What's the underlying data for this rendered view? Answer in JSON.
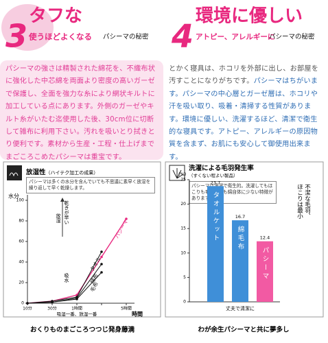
{
  "left_section": {
    "number": "3",
    "title": "タフな",
    "subtitle": "使うほどよくなる",
    "tag": "パシーマの秘密",
    "paragraph": "パシーマの強さは精製された綿花を、不織布状に強化した中芯綿を両面より密度の高いガーゼで保護し、全面を強力な糸により網状キルトに加工している点にあります。外側のガーゼやキルト糸がいたむ迄使用した後、30cm位に切断して雑布に利用下さい。汚れを吸いとり拭きとり便利です。素材から生産・工程・仕上げまでまごころこめたパシーマは重宝です。"
  },
  "right_section": {
    "number": "4",
    "title": "環境に優しい",
    "subtitle": "アトピー、アレルギーに",
    "tag": "パシーマの秘密",
    "paragraph_intro": "とかく寝具は、ホコリを外部に出し、お部屋を汚すことになりがちです。",
    "paragraph": "パシーマはちがいます。パシーマの中心層とガーゼ層は、ホコリや汗を吸い取り、吸着・清掃する性質があります。環境に優しい、洗濯するほど、清潔で衛生的な寝具です。アトピー、アレルギーの原因物質を含まず、お肌にも安心して御使用出来ます。"
  },
  "chart_data": [
    {
      "type": "line",
      "title": "放湿性",
      "subtitle": "（ハイテク加工の成果）",
      "description": "パシーマは多くの水分を含んでいても不思議に素早く放湿を繰り返して早く乾燥します。",
      "y_label": "水分",
      "x_label": "時間",
      "x_note": "吸湿一番、放湿一番",
      "annotations": [
        "乾きが早い",
        "放湿",
        "吸水"
      ],
      "categories": [
        "10分",
        "30分",
        "1時間",
        null,
        "5時間"
      ],
      "series": [
        {
          "name": "パシーマ",
          "color": "#e8287f",
          "values": [
            0,
            2,
            8,
            45,
            82
          ]
        },
        {
          "name": "タオル",
          "color": "#111111",
          "values": [
            0,
            2,
            6,
            50,
            null
          ]
        },
        {
          "name": "綿布",
          "color": "#111111",
          "values": [
            0,
            1,
            5,
            38,
            null
          ]
        },
        {
          "name": "毛布",
          "color": "#111111",
          "values": [
            0,
            1,
            4,
            30,
            null
          ]
        }
      ],
      "ylim": [
        0,
        100
      ],
      "yticks": [
        0,
        20,
        40,
        60,
        80,
        100
      ],
      "caption": "おくりものまごころつつじ発身藤満"
    },
    {
      "type": "bar",
      "title": "洗濯による毛羽発生率",
      "subtitle": "（すくない程よい製品）",
      "description": "パシーマは洗濯で衛生的。洗濯してもほこりも毛羽立ちも綿自体に少ない特徴があります。",
      "y_label": "(%)",
      "x_label": "丈夫で清潔に",
      "side_note": [
        "不潔な毛羽、",
        "ほこりは最小"
      ],
      "categories": [
        "タオルケット",
        "綿毛布",
        "パシーマ"
      ],
      "values": [
        23.7,
        16.7,
        12.4
      ],
      "colors": [
        "#3f8fd8",
        "#3f8fd8",
        "#f25aa3"
      ],
      "ylim": [
        0,
        25
      ],
      "yticks": [
        0,
        5,
        10,
        15,
        20,
        25
      ],
      "caption": "わが余生パシーマと共に夢多し"
    }
  ]
}
